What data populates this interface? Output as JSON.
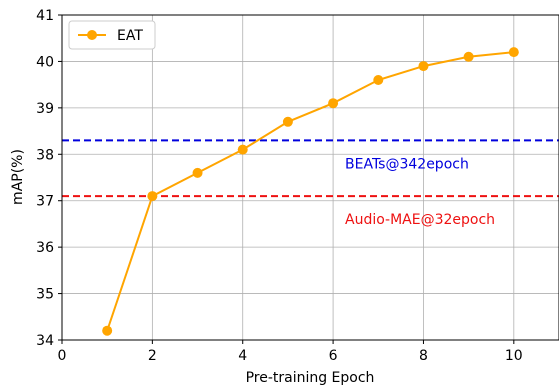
{
  "chart_data": {
    "type": "line",
    "title": "",
    "xlabel": "Pre-training Epoch",
    "ylabel": "mAP(%)",
    "xlim": [
      0,
      11
    ],
    "ylim": [
      34,
      41
    ],
    "xticks": [
      0,
      2,
      4,
      6,
      8,
      10
    ],
    "yticks": [
      34,
      35,
      36,
      37,
      38,
      39,
      40,
      41
    ],
    "grid": true,
    "legend_position": "top-left",
    "series": [
      {
        "name": "EAT",
        "color": "#ffa500",
        "marker": "circle",
        "x": [
          1,
          2,
          3,
          4,
          5,
          6,
          7,
          8,
          9,
          10
        ],
        "y": [
          34.2,
          37.1,
          37.6,
          38.1,
          38.7,
          39.1,
          39.6,
          39.9,
          40.1,
          40.2
        ]
      }
    ],
    "reference_lines": [
      {
        "label": "BEATs@342epoch",
        "y": 38.3,
        "color": "#0000dd",
        "style": "dashed"
      },
      {
        "label": "Audio-MAE@32epoch",
        "y": 37.1,
        "color": "#ee1111",
        "style": "dashed"
      }
    ]
  }
}
